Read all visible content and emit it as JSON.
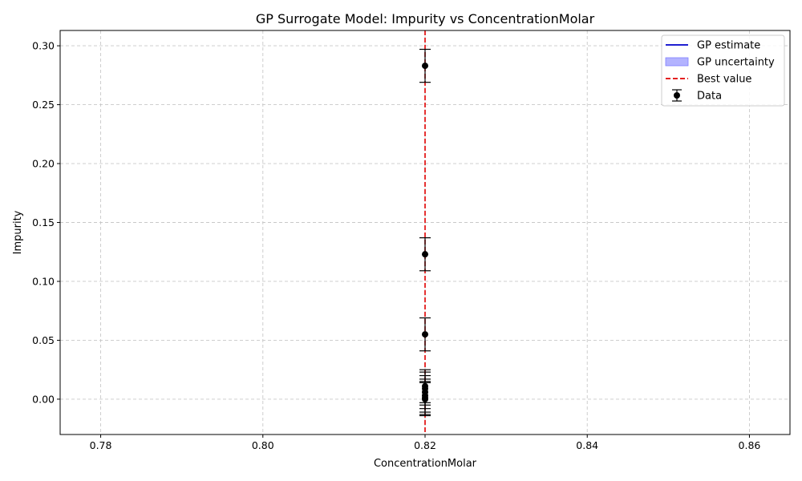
{
  "chart_data": {
    "type": "scatter",
    "title": "GP Surrogate Model: Impurity vs ConcentrationMolar",
    "xlabel": "ConcentrationMolar",
    "ylabel": "Impurity",
    "xlim": [
      0.775,
      0.865
    ],
    "ylim": [
      -0.03,
      0.313
    ],
    "xticks": [
      0.78,
      0.8,
      0.82,
      0.84,
      0.86
    ],
    "xtick_labels": [
      "0.78",
      "0.80",
      "0.82",
      "0.84",
      "0.86"
    ],
    "yticks": [
      0.0,
      0.05,
      0.1,
      0.15,
      0.2,
      0.25,
      0.3
    ],
    "ytick_labels": [
      "0.00",
      "0.05",
      "0.10",
      "0.15",
      "0.20",
      "0.25",
      "0.30"
    ],
    "grid": true,
    "legend_position": "top-right",
    "series": [
      {
        "name": "Data",
        "kind": "errorbar",
        "color": "#000000",
        "points": [
          {
            "x": 0.82,
            "y": 0.283,
            "err": 0.014
          },
          {
            "x": 0.82,
            "y": 0.123,
            "err": 0.014
          },
          {
            "x": 0.82,
            "y": 0.055,
            "err": 0.014
          },
          {
            "x": 0.82,
            "y": 0.011,
            "err": 0.014
          },
          {
            "x": 0.82,
            "y": 0.009,
            "err": 0.014
          },
          {
            "x": 0.82,
            "y": 0.006,
            "err": 0.014
          },
          {
            "x": 0.82,
            "y": 0.003,
            "err": 0.014
          },
          {
            "x": 0.82,
            "y": 0.001,
            "err": 0.014
          },
          {
            "x": 0.82,
            "y": 0.0,
            "err": 0.014
          }
        ]
      }
    ],
    "best_value": {
      "x": 0.82,
      "color": "#e00000"
    },
    "legend": [
      {
        "label": "GP estimate",
        "kind": "line",
        "color": "#0000cc"
      },
      {
        "label": "GP uncertainty",
        "kind": "patch",
        "color": "#b3b3ff"
      },
      {
        "label": "Best value",
        "kind": "dashed",
        "color": "#e00000"
      },
      {
        "label": "Data",
        "kind": "errorbar",
        "color": "#000000"
      }
    ]
  }
}
